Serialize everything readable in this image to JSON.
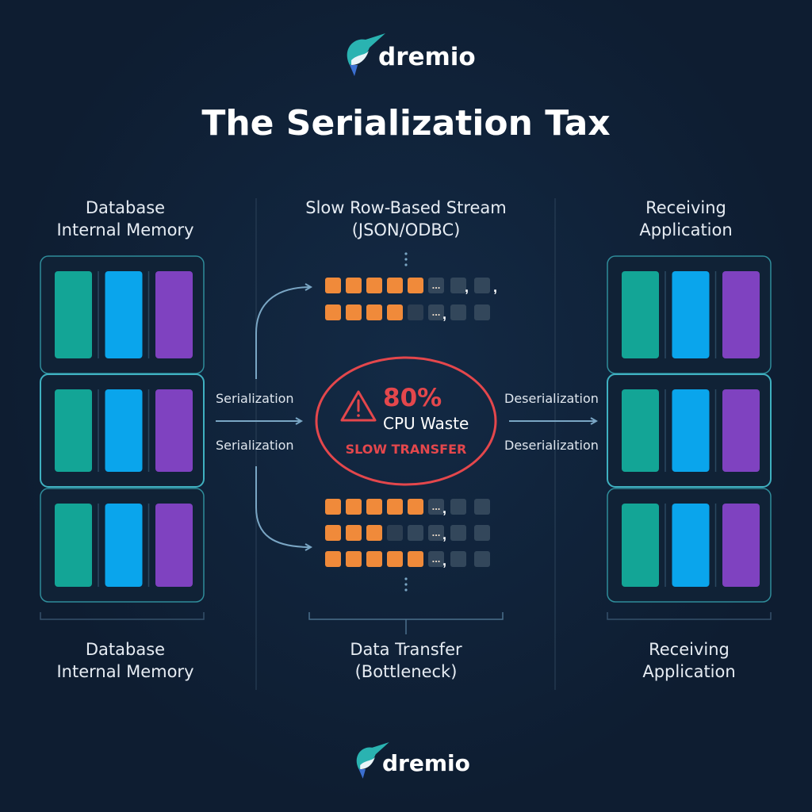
{
  "brand": {
    "name": "dremio",
    "logo_icon": "narwhal-icon"
  },
  "title": "The Serialization Tax",
  "columns": {
    "left": {
      "top_label": [
        "Database",
        "Internal Memory"
      ],
      "bottom_label": [
        "Database",
        "Internal Memory"
      ]
    },
    "middle": {
      "top_label": [
        "Slow Row-Based Stream",
        "(JSON/ODBC)"
      ],
      "bottom_label": [
        "Data Transfer",
        "(Bottleneck)"
      ]
    },
    "right": {
      "top_label": [
        "Receiving",
        "Application"
      ],
      "bottom_label": [
        "Receiving",
        "Application"
      ]
    }
  },
  "arrows": {
    "left_labels": [
      "Serialization",
      "Serialization"
    ],
    "right_labels": [
      "Deserialization",
      "Deserialization"
    ]
  },
  "warning": {
    "icon": "warning-triangle-icon",
    "percent": "80%",
    "label": "CPU Waste",
    "status": "SLOW TRANSFER"
  },
  "stream_rows": {
    "top": [
      {
        "filled": 5,
        "separators": ", ,"
      },
      {
        "filled": 4,
        "separators": ","
      }
    ],
    "bottom": [
      {
        "filled": 5
      },
      {
        "filled": 3
      },
      {
        "filled": 5
      }
    ],
    "ellipsis": "..."
  },
  "colors": {
    "background": "#0e1d31",
    "teal": "#13a596",
    "blue": "#0aa5ec",
    "purple": "#7f42c0",
    "orange": "#f08a3a",
    "alert": "#e4474c",
    "frame": "#2f8c9a",
    "arrow": "#7aa6c4"
  }
}
